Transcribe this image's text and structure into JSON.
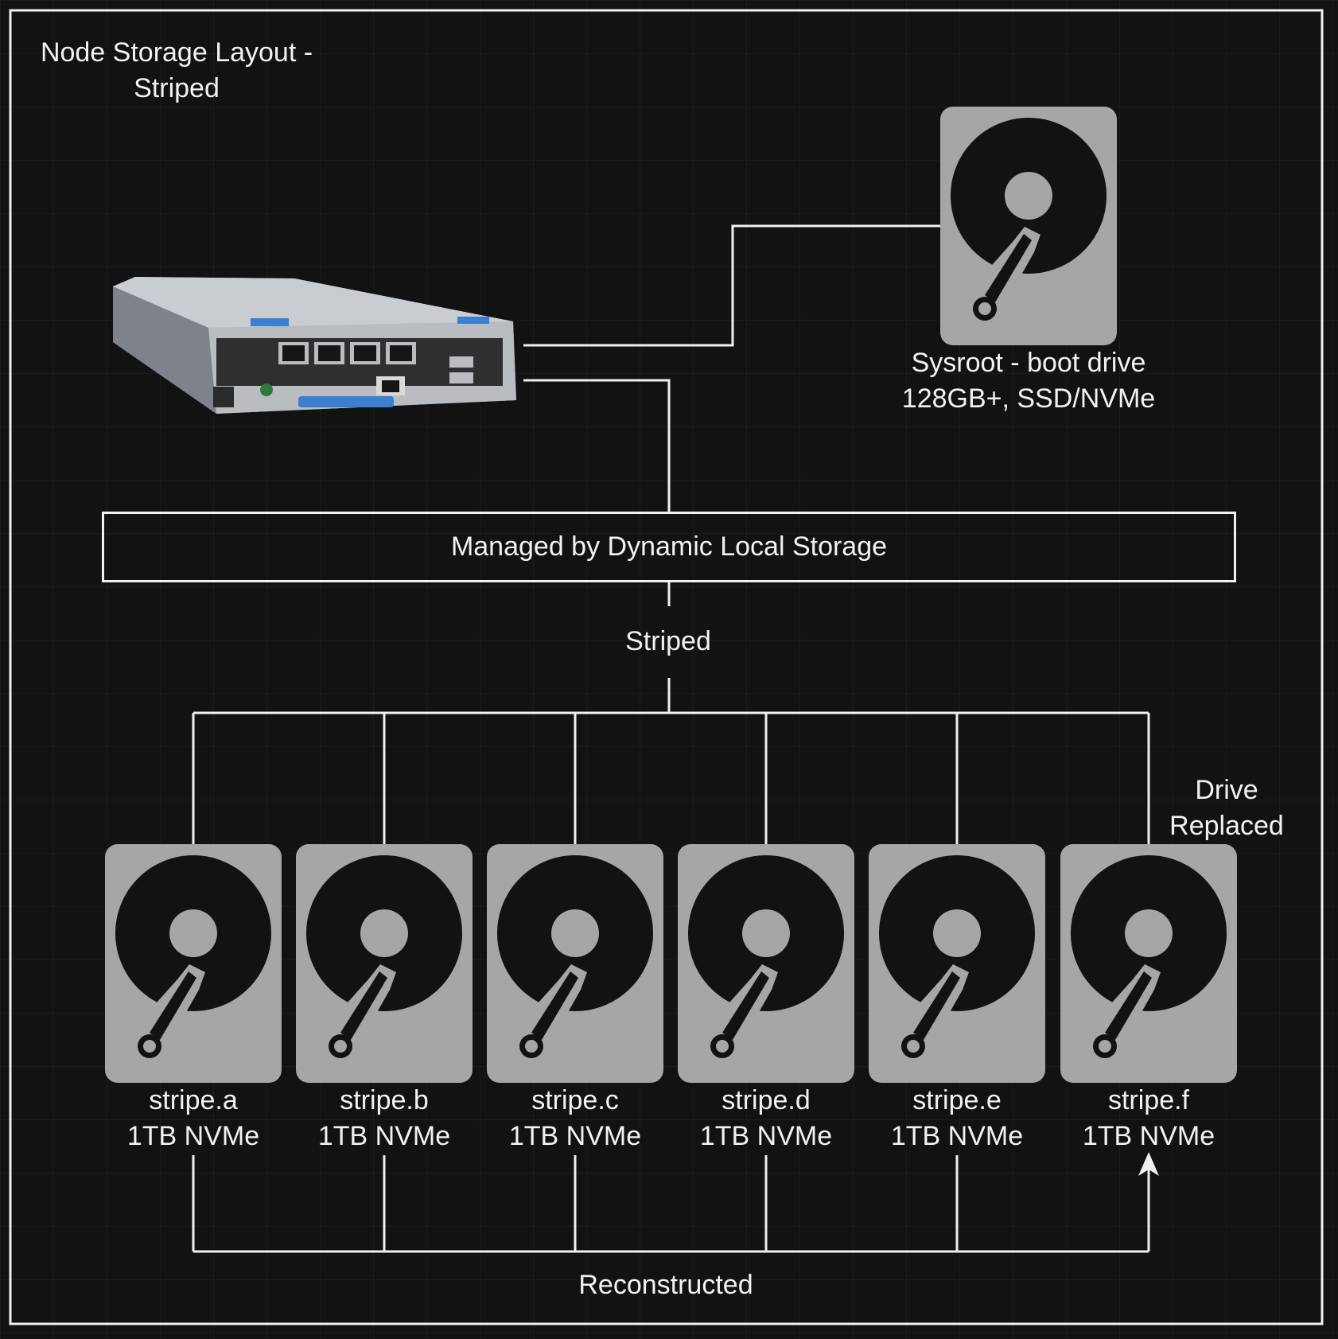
{
  "title_lines": [
    "Node Storage Layout -",
    "Striped"
  ],
  "boot_drive": {
    "name": "Sysroot - boot drive",
    "spec": "128GB+, SSD/NVMe"
  },
  "managed_box": "Managed by Dynamic Local Storage",
  "striped_label": "Striped",
  "replaced_lines": [
    "Drive",
    "Replaced"
  ],
  "reconstructed_label": "Reconstructed",
  "drives": [
    {
      "name": "stripe.a",
      "spec": "1TB NVMe"
    },
    {
      "name": "stripe.b",
      "spec": "1TB NVMe"
    },
    {
      "name": "stripe.c",
      "spec": "1TB NVMe"
    },
    {
      "name": "stripe.d",
      "spec": "1TB NVMe"
    },
    {
      "name": "stripe.e",
      "spec": "1TB NVMe"
    },
    {
      "name": "stripe.f",
      "spec": "1TB NVMe"
    }
  ],
  "colors": {
    "background": "#121212",
    "line": "#f0f0f0",
    "drive_body": "#a6a6a6",
    "drive_platter": "#121212"
  },
  "icons": {
    "server": "server-chassis-icon",
    "drive": "hard-drive-icon"
  }
}
